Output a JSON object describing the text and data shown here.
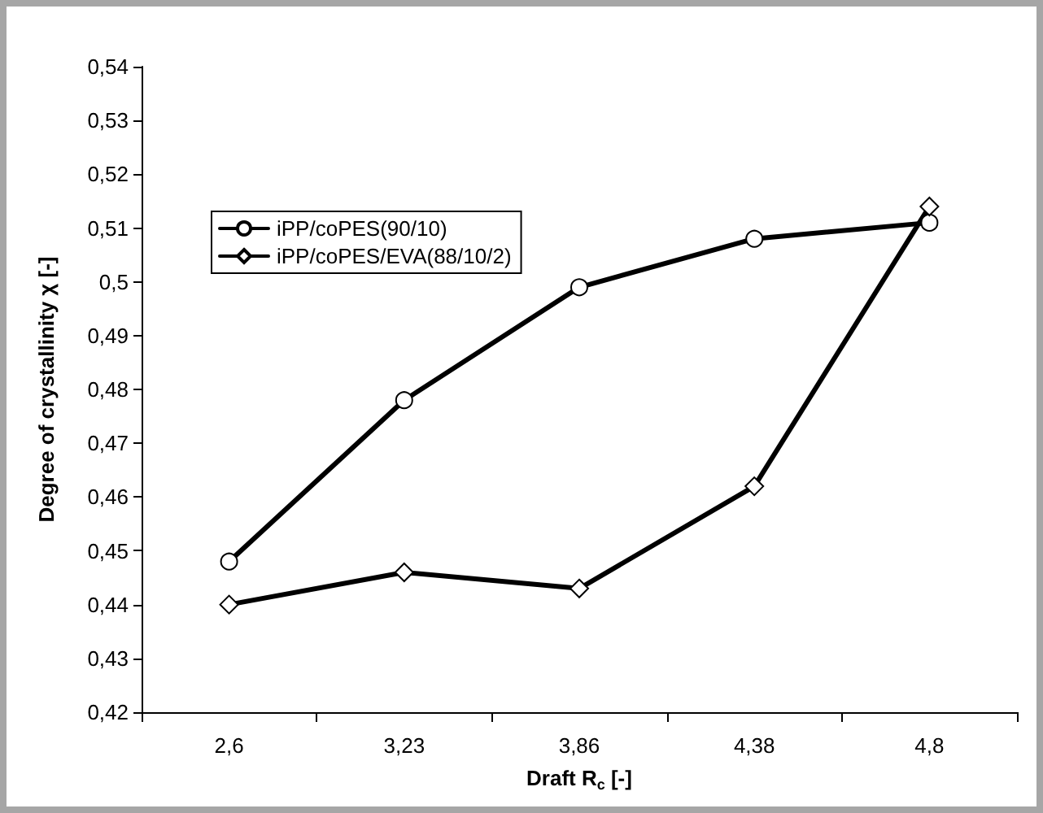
{
  "chart_data": {
    "type": "line",
    "xlabel": "Draft R$_{c}$ [-]",
    "ylabel": "Degree of crystallinity χ [-]",
    "categories": [
      "2,6",
      "3,23",
      "3,86",
      "4,38",
      "4,8"
    ],
    "series": [
      {
        "name": "iPP/coPES(90/10)",
        "color": "#000000",
        "marker": "circle",
        "values": [
          0.448,
          0.478,
          0.499,
          0.508,
          0.511
        ]
      },
      {
        "name": "iPP/coPES/EVA(88/10/2)",
        "color": "#000000",
        "marker": "diamond",
        "values": [
          0.44,
          0.446,
          0.443,
          0.462,
          0.514
        ]
      }
    ],
    "ylim": [
      0.42,
      0.54
    ],
    "yticks": [
      {
        "value": 0.42,
        "label": "0,42"
      },
      {
        "value": 0.43,
        "label": "0,43"
      },
      {
        "value": 0.44,
        "label": "0,44"
      },
      {
        "value": 0.45,
        "label": "0,45"
      },
      {
        "value": 0.46,
        "label": "0,46"
      },
      {
        "value": 0.47,
        "label": "0,47"
      },
      {
        "value": 0.48,
        "label": "0,48"
      },
      {
        "value": 0.49,
        "label": "0,49"
      },
      {
        "value": 0.5,
        "label": "0,5"
      },
      {
        "value": 0.51,
        "label": "0,51"
      },
      {
        "value": 0.52,
        "label": "0,52"
      },
      {
        "value": 0.53,
        "label": "0,53"
      },
      {
        "value": 0.54,
        "label": "0,54"
      }
    ],
    "grid": false,
    "legend": "top left",
    "line_style": "solid"
  }
}
